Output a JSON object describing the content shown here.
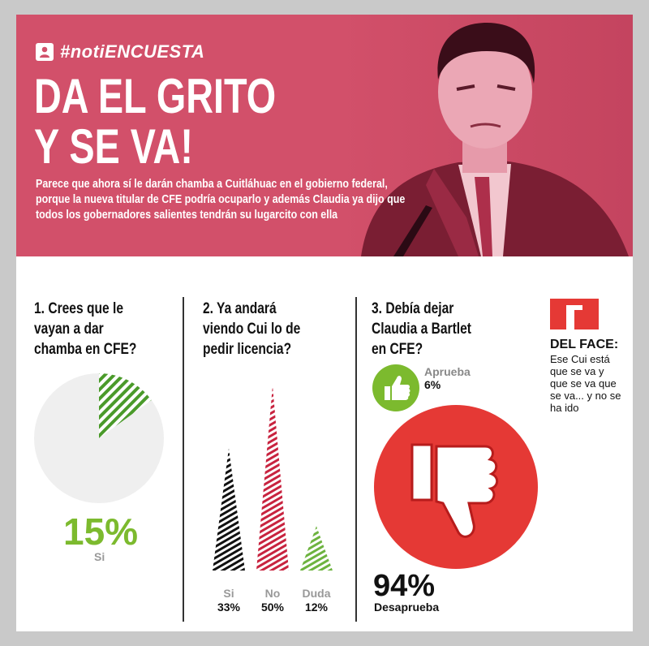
{
  "header": {
    "tag": "#notiENCUESTA",
    "title_line1": "DA EL GRITO",
    "title_line2": "Y SE VA!",
    "lead": "Parece que ahora sí le darán chamba a Cuitláhuac en el gobierno federal, porque la nueva titular de CFE podría ocuparlo y además Claudia ya dijo que todos los gobernadores salientes tendrán su lugarcito con ella"
  },
  "q1": {
    "question_line1": "1. Crees que le",
    "question_line2": "vayan a dar",
    "question_line3": "chamba en CFE?",
    "percent": "15%",
    "label": "Si",
    "value": 15
  },
  "q2": {
    "question_line1": "2. Ya andará",
    "question_line2": "viendo Cui lo de",
    "question_line3": "pedir licencia?",
    "options": [
      {
        "label": "Si",
        "percent": "33%",
        "value": 33,
        "color": "#111111"
      },
      {
        "label": "No",
        "percent": "50%",
        "value": 50,
        "color": "#c8233f"
      },
      {
        "label": "Duda",
        "percent": "12%",
        "value": 12,
        "color": "#6db33f"
      }
    ]
  },
  "q3": {
    "question_line1": "3. Debía dejar",
    "question_line2": "Claudia a Bartlet",
    "question_line3": "en CFE?",
    "approve_label": "Aprueba",
    "approve_percent": "6%",
    "disapprove_percent": "94%",
    "disapprove_label": "Desaprueba"
  },
  "face": {
    "title": "DEL FACE:",
    "text": "Ese Cui está que se va y que se va que se va... y no se ha ido"
  },
  "colors": {
    "banner": "#d2506a",
    "green": "#7cba2e",
    "red": "#e53935"
  }
}
